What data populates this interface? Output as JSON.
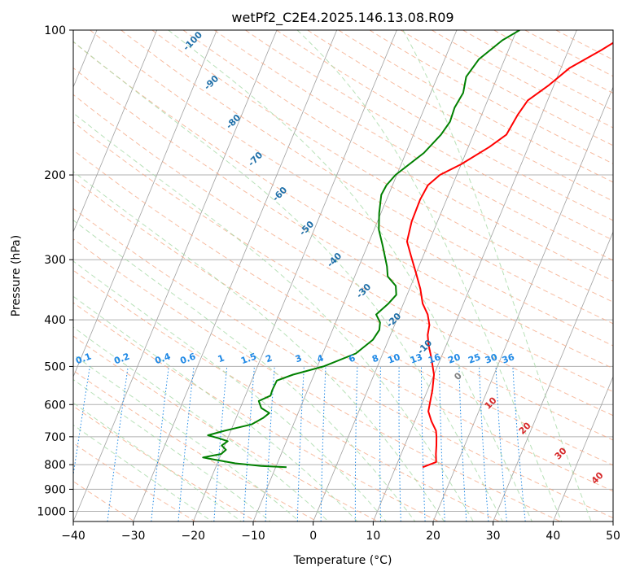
{
  "chart_data": {
    "type": "line",
    "title": "wetPf2_C2E4.2025.146.13.08.R09",
    "xlabel": "Temperature (°C)",
    "ylabel": "Pressure (hPa)",
    "xlim": [
      -40,
      50
    ],
    "ylim": [
      1050,
      100
    ],
    "y_scale": "log",
    "grid": true,
    "x_ticks": [
      -40,
      -30,
      -20,
      -10,
      0,
      10,
      20,
      30,
      40,
      50
    ],
    "x_tick_labels": [
      "−40",
      "−30",
      "−20",
      "−10",
      "0",
      "10",
      "20",
      "30",
      "40",
      "50"
    ],
    "y_ticks": [
      100,
      200,
      300,
      400,
      500,
      600,
      700,
      800,
      900,
      1000
    ],
    "y_tick_labels": [
      "100",
      "200",
      "300",
      "400",
      "500",
      "600",
      "700",
      "800",
      "900",
      "1000"
    ],
    "series": [
      {
        "color": "#ff0000",
        "x": [
          14.5,
          16.4,
          15.8,
          15.3,
          14.7,
          14.2,
          12.8,
          11.6,
          11.2,
          10.8,
          10.0,
          8.4,
          7.0,
          6.2,
          5.8,
          4.8,
          3.2,
          1.8,
          0.0,
          -2.0,
          -3.7,
          -4.3,
          -4.4,
          -4.1,
          -2.8,
          0.0,
          3.5,
          5.5,
          6.0,
          6.7,
          9.2,
          11.4,
          15.5,
          19.5
        ],
        "y": [
          810,
          790,
          760,
          730,
          700,
          680,
          650,
          620,
          590,
          560,
          520,
          480,
          450,
          430,
          410,
          390,
          370,
          345,
          320,
          295,
          275,
          250,
          225,
          210,
          200,
          190,
          175,
          165,
          150,
          140,
          130,
          120,
          110,
          100
        ]
      },
      {
        "color": "#008000",
        "x": [
          -8.2,
          -12.5,
          -17.0,
          -21.0,
          -22.8,
          -20.0,
          -19.5,
          -20.5,
          -19.8,
          -21.5,
          -23.5,
          -21.0,
          -17.0,
          -15.5,
          -14.8,
          -16.5,
          -17.4,
          -15.8,
          -15.9,
          -15.8,
          -13.5,
          -9.0,
          -4.5,
          -2.6,
          -2.2,
          -2.6,
          -3.8,
          -2.5,
          -1.8,
          -2.5,
          -4.5,
          -5.3,
          -7.5,
          -9.2,
          -10.3,
          -11.2,
          -11.0,
          -10.2,
          -7.0,
          -5.4,
          -4.8,
          -5.0,
          -4.6,
          -5.2,
          -4.3,
          -1.7,
          0.5
        ],
        "y": [
          810,
          805,
          795,
          780,
          773,
          760,
          745,
          730,
          715,
          705,
          695,
          680,
          660,
          640,
          625,
          610,
          590,
          575,
          560,
          535,
          520,
          500,
          470,
          440,
          420,
          405,
          390,
          370,
          355,
          340,
          325,
          310,
          280,
          260,
          240,
          220,
          210,
          200,
          180,
          165,
          155,
          145,
          135,
          125,
          115,
          105,
          100
        ]
      }
    ],
    "dry_adiabat_labels": [
      "-100",
      "-90",
      "-80",
      "-70",
      "-60",
      "-50",
      "-40",
      "-30",
      "-20",
      "-10"
    ],
    "moist_adiabat_labels": [
      "0",
      "10",
      "20",
      "30",
      "40"
    ],
    "mixing_ratio_labels": [
      "0.1",
      "0.2",
      "0.4",
      "0.6",
      "1",
      "1.5",
      "2",
      "3",
      "4",
      "6",
      "8",
      "10",
      "13",
      "16",
      "20",
      "25",
      "30",
      "36"
    ],
    "colors": {
      "temperature": "#ff0000",
      "dewpoint": "#008000",
      "isotherm": "#a0a0a0",
      "dry_adiabat": "#f4a582",
      "moist_adiabat": "#a6d9a6",
      "mixing_ratio": "#1e88e5",
      "dry_label": "#1f6fa8",
      "moist_label": "#d62728"
    }
  }
}
